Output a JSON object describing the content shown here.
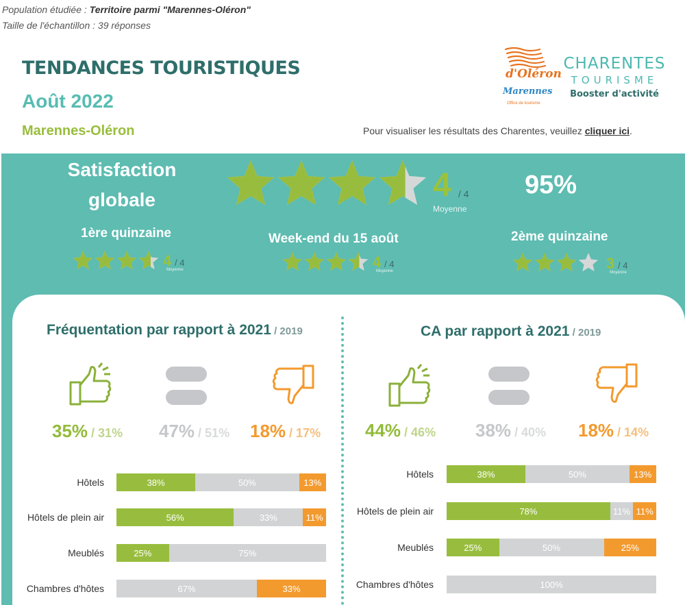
{
  "meta": {
    "population_label": "Population étudiée : ",
    "population_value": "Territoire parmi \"Marennes-Oléron\"",
    "sample": "Taille de l'échantillon : 39 réponses"
  },
  "header": {
    "title": "TENDANCES TOURISTIQUES",
    "month": "Août 2022",
    "region": "Marennes-Oléron",
    "visual_text": "Pour visualiser les résultats des Charentes, veuillez ",
    "visual_link": "cliquer ici",
    "visual_end": "."
  },
  "logos": {
    "oleron_line1": "d'Oléron",
    "oleron_line2": "Marennes",
    "oleron_line3": "Office de tourisme",
    "charentes_line1": "CHARENTES",
    "charentes_line2": "TOURISME",
    "charentes_line3": "Booster d'activité"
  },
  "satisfaction": {
    "label_line1": "Satisfaction",
    "label_line2": "globale",
    "score": "4",
    "out_of": "/ 4",
    "moyenne": "Moyenne",
    "rating_fill": 3.55,
    "percent": "95%",
    "periods": [
      {
        "title": "1ère quinzaine",
        "score": "4",
        "out_of": "/ 4",
        "moyenne": "Moyenne",
        "rating_fill": 3.6
      },
      {
        "title": "Week-end du 15 août",
        "score": "4",
        "out_of": "/ 4",
        "moyenne": "Moyenne",
        "rating_fill": 3.55
      },
      {
        "title": "2ème  quinzaine",
        "score": "3",
        "out_of": "/ 4",
        "moyenne": "Moyenne",
        "rating_fill": 3.0
      }
    ]
  },
  "colors": {
    "teal": "#5ebcb1",
    "green": "#98bd3e",
    "grey": "#d1d3d4",
    "orange": "#f39a2e",
    "dark_teal": "#2e6e6a"
  },
  "frequentation": {
    "title": "Fréquentation par rapport à 2021",
    "year": " / 2019",
    "up": "35%",
    "up_2019": " / 31%",
    "equal": "47%",
    "equal_2019": " / 51%",
    "down": "18%",
    "down_2019": " / 17%",
    "rows": [
      {
        "label": "Hôtels",
        "green": 38,
        "grey": 50,
        "orange": 13,
        "green_label": "38%",
        "grey_label": "50%",
        "orange_label": "13%"
      },
      {
        "label": "Hôtels de plein air",
        "green": 56,
        "grey": 33,
        "orange": 11,
        "green_label": "56%",
        "grey_label": "33%",
        "orange_label": "11%"
      },
      {
        "label": "Meublés",
        "green": 25,
        "grey": 75,
        "orange": 0,
        "green_label": "25%",
        "grey_label": "75%",
        "orange_label": ""
      },
      {
        "label": "Chambres d'hôtes",
        "green": 0,
        "grey": 67,
        "orange": 33,
        "green_label": "",
        "grey_label": "67%",
        "orange_label": "33%"
      }
    ]
  },
  "ca": {
    "title": "CA par rapport à 2021",
    "year": " / 2019",
    "up": "44%",
    "up_2019": " / 46%",
    "equal": "38%",
    "equal_2019": " / 40%",
    "down": "18%",
    "down_2019": " / 14%",
    "rows": [
      {
        "label": "Hôtels",
        "green": 38,
        "grey": 50,
        "orange": 13,
        "green_label": "38%",
        "grey_label": "50%",
        "orange_label": "13%"
      },
      {
        "label": "Hôtels de plein air",
        "green": 78,
        "grey": 11,
        "orange": 11,
        "green_label": "78%",
        "grey_label": "11%",
        "orange_label": "11%"
      },
      {
        "label": "Meublés",
        "green": 25,
        "grey": 50,
        "orange": 25,
        "green_label": "25%",
        "grey_label": "50%",
        "orange_label": "25%"
      },
      {
        "label": "Chambres d'hôtes",
        "green": 0,
        "grey": 100,
        "orange": 0,
        "green_label": "",
        "grey_label": "100%",
        "orange_label": ""
      }
    ]
  }
}
